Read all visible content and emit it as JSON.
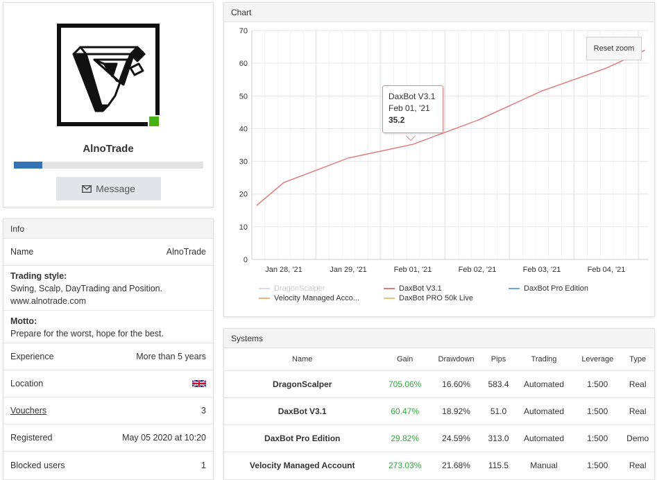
{
  "profile": {
    "name": "AlnoTrade",
    "level_progress": 0.15,
    "message_label": "Message",
    "online_color": "#47b216"
  },
  "info": {
    "header": "Info",
    "name_label": "Name",
    "name_value": "AlnoTrade",
    "trading_style_label": "Trading style:",
    "trading_style_text": "Swing, Scalp, DayTrading and Position.",
    "trading_style_url": "www.alnotrade.com",
    "motto_label": "Motto:",
    "motto_text": "Prepare for the worst, hope for the best.",
    "experience_label": "Experience",
    "experience_value": "More than 5 years",
    "location_label": "Location",
    "location_flag": "uk-flag-icon",
    "vouchers_label": "Vouchers",
    "vouchers_value": "3",
    "registered_label": "Registered",
    "registered_value": "May 05 2020 at 10:20",
    "blocked_label": "Blocked users",
    "blocked_value": "1"
  },
  "chart": {
    "header": "Chart",
    "reset_zoom_label": "Reset zoom",
    "tooltip": {
      "series": "DaxBot V3.1",
      "date": "Feb 01, '21",
      "value": "35.2"
    },
    "legend": [
      {
        "name": "DragonScalper",
        "color": "#9bc7a0",
        "visible": false
      },
      {
        "name": "DaxBot V3.1",
        "color": "#e07b7b",
        "visible": true
      },
      {
        "name": "DaxBot Pro Edition",
        "color": "#6aa9d8",
        "visible": true
      },
      {
        "name": "Velocity Managed Acco...",
        "color": "#f3b27a",
        "visible": true
      },
      {
        "name": "DaxBot PRO 50k Live",
        "color": "#e6c27a",
        "visible": true
      }
    ]
  },
  "chart_data": {
    "type": "line",
    "title": "",
    "xlabel": "",
    "ylabel": "",
    "ylim": [
      0,
      70
    ],
    "yticks": [
      0,
      10,
      20,
      30,
      40,
      50,
      60,
      70
    ],
    "xticks": [
      "Jan 28, '21",
      "Jan 29, '21",
      "Feb 01, '21",
      "Feb 02, '21",
      "Feb 03, '21",
      "Feb 04, '21"
    ],
    "grid": true,
    "legend_position": "bottom",
    "series": [
      {
        "name": "DaxBot V3.1",
        "color": "#e07b7b",
        "points": [
          {
            "x": -0.42,
            "y": 16.5
          },
          {
            "x": 0.0,
            "y": 23.5
          },
          {
            "x": 1.0,
            "y": 31.0
          },
          {
            "x": 2.0,
            "y": 35.2
          },
          {
            "x": 3.0,
            "y": 42.5
          },
          {
            "x": 4.0,
            "y": 51.5
          },
          {
            "x": 5.0,
            "y": 58.5
          },
          {
            "x": 5.6,
            "y": 64.0
          }
        ]
      }
    ]
  },
  "systems": {
    "header": "Systems",
    "columns": [
      "Name",
      "Gain",
      "Drawdown",
      "Pips",
      "Trading",
      "Leverage",
      "Type"
    ],
    "rows": [
      {
        "name": "DragonScalper",
        "gain": "705.06%",
        "drawdown": "16.60%",
        "pips": "583.4",
        "trading": "Automated",
        "leverage": "1:500",
        "type": "Real"
      },
      {
        "name": "DaxBot V3.1",
        "gain": "60.47%",
        "drawdown": "18.92%",
        "pips": "51.0",
        "trading": "Automated",
        "leverage": "1:500",
        "type": "Real"
      },
      {
        "name": "DaxBot Pro Edition",
        "gain": "29.82%",
        "drawdown": "24.59%",
        "pips": "313.0",
        "trading": "Automated",
        "leverage": "1:500",
        "type": "Demo"
      },
      {
        "name": "Velocity Managed Account",
        "gain": "273.03%",
        "drawdown": "21.68%",
        "pips": "115.5",
        "trading": "Manual",
        "leverage": "1:500",
        "type": "Real"
      }
    ]
  }
}
